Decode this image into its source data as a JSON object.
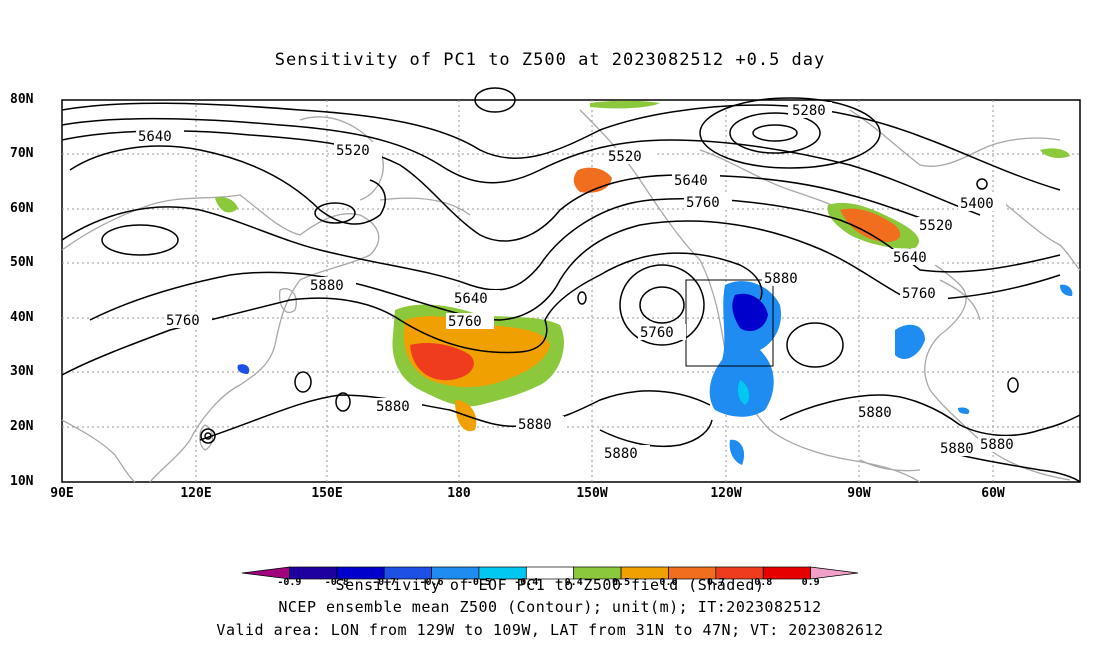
{
  "title": "Sensitivity of PC1 to Z500 at 2023082512 +0.5 day",
  "lat_labels": [
    "80N",
    "70N",
    "60N",
    "50N",
    "40N",
    "30N",
    "20N",
    "10N"
  ],
  "lon_labels": [
    "90E",
    "120E",
    "150E",
    "180",
    "150W",
    "120W",
    "90W",
    "60W"
  ],
  "contour_labels": [
    "5280",
    "5640",
    "5520",
    "5520",
    "5640",
    "5760",
    "5400",
    "5520",
    "5640",
    "5760",
    "5880",
    "5640",
    "5760",
    "5760",
    "5880",
    "5760",
    "5880",
    "5880",
    "5880",
    "5880",
    "5880",
    "5880"
  ],
  "colorbar": {
    "colors": [
      "#a0007d",
      "#1e00a0",
      "#0000cd",
      "#1e50e6",
      "#1e8cf0",
      "#00c8f0",
      "#ffffff",
      "#8cc83c",
      "#f0a000",
      "#f06e1e",
      "#f03c1e",
      "#e60000",
      "#f0a0c8"
    ],
    "tick_labels": [
      "-0.9",
      "-0.8",
      "-0.7",
      "-0.6",
      "-0.5",
      "-0.4",
      "0.4",
      "0.5",
      "0.6",
      "0.7",
      "0.8",
      "0.9"
    ]
  },
  "captions": {
    "line1": "Sensitivity of EOF PC1 to Z500 field (Shaded)",
    "line2": "NCEP ensemble mean Z500 (Contour); unit(m); IT:2023082512",
    "line3": "Valid area: LON from 129W to 109W, LAT from 31N to 47N; VT: 2023082612"
  }
}
